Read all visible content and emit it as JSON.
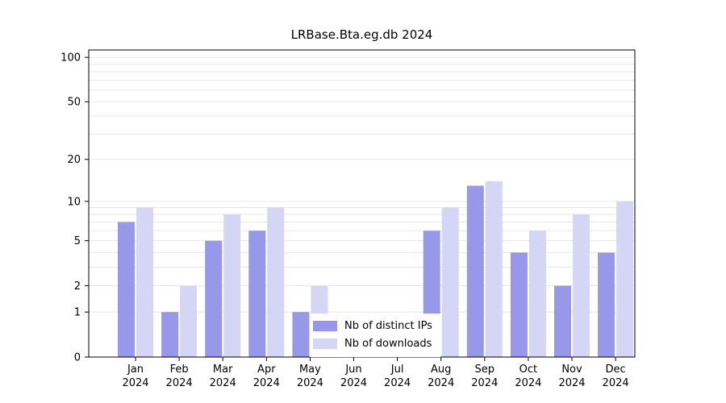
{
  "chart_data": {
    "type": "bar",
    "title": "LRBase.Bta.eg.db 2024",
    "categories": [
      "Jan",
      "Feb",
      "Mar",
      "Apr",
      "May",
      "Jun",
      "Jul",
      "Aug",
      "Sep",
      "Oct",
      "Nov",
      "Dec"
    ],
    "year": "2024",
    "series": [
      {
        "name": "Nb of distinct IPs",
        "color": "#9898ea",
        "values": [
          7,
          1,
          5,
          6,
          1,
          0,
          0,
          6,
          13,
          4,
          2,
          4
        ]
      },
      {
        "name": "Nb of downloads",
        "color": "#d5d5f6",
        "values": [
          9,
          2,
          8,
          9,
          2,
          0,
          0,
          9,
          14,
          6,
          8,
          10
        ]
      }
    ],
    "xlabel": "",
    "ylabel": "",
    "y_scale": "log10(1+x)",
    "y_ticks": [
      0,
      1,
      2,
      5,
      10,
      20,
      50,
      100
    ],
    "grid_values": [
      1,
      2,
      3,
      4,
      5,
      6,
      7,
      8,
      9,
      10,
      20,
      30,
      40,
      50,
      60,
      70,
      80,
      90,
      100
    ],
    "ylim": [
      0,
      112
    ],
    "grid": true,
    "legend_position": "inside-bottom-center",
    "colors": {
      "axis": "#000000",
      "gridline": "#e7e7e7",
      "text": "#000000",
      "background": "#ffffff"
    }
  }
}
